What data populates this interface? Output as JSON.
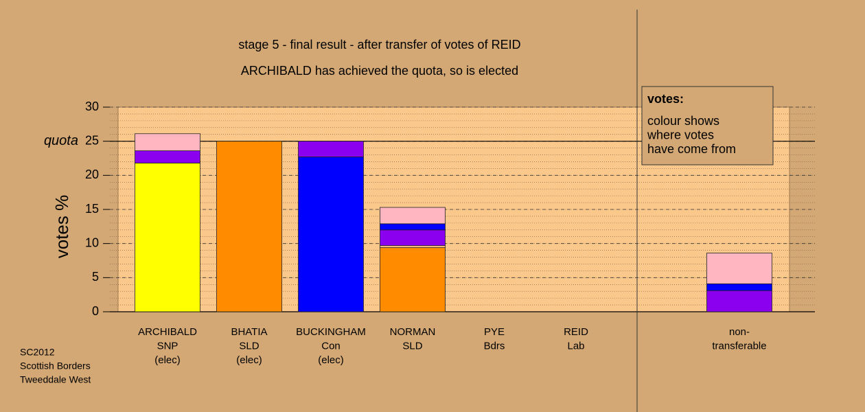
{
  "chart_data": {
    "type": "stacked-bar",
    "title": "stage 5 - final result - after transfer of votes of REID",
    "subtitle": "ARCHIBALD has achieved the quota, so is elected",
    "y_label": "votes %",
    "categories": [
      [
        "ARCHIBALD",
        "SNP",
        "(elec)"
      ],
      [
        "BHATIA",
        "SLD",
        "(elec)"
      ],
      [
        "BUCKINGHAM",
        "Con",
        "(elec)"
      ],
      [
        "NORMAN",
        "SLD"
      ],
      [
        "PYE",
        "Bdrs"
      ],
      [
        "REID",
        "Lab"
      ],
      [
        "non-",
        "transferable"
      ]
    ],
    "stacks": [
      [
        {
          "value": 21.8,
          "color": "#ffff00"
        },
        {
          "value": 1.8,
          "color": "#8b00ee"
        },
        {
          "value": 2.5,
          "color": "#ffb6c1"
        }
      ],
      [
        {
          "value": 25,
          "color": "#ff8c00"
        }
      ],
      [
        {
          "value": 22.7,
          "color": "#0000ff"
        },
        {
          "value": 2.3,
          "color": "#8b00ee"
        }
      ],
      [
        {
          "value": 9.4,
          "color": "#ff8c00"
        },
        {
          "value": 0.3,
          "color": "#ffc080"
        },
        {
          "value": 2.3,
          "color": "#8b00ee"
        },
        {
          "value": 0.9,
          "color": "#0000ff"
        },
        {
          "value": 2.4,
          "color": "#ffb6c1"
        }
      ],
      [
        {
          "value": 0,
          "color": "#ff8c00"
        }
      ],
      [
        {
          "value": 0,
          "color": "#ff8c00"
        }
      ],
      [
        {
          "value": 3.1,
          "color": "#8b00ee"
        },
        {
          "value": 1.0,
          "color": "#0000ff"
        },
        {
          "value": 4.5,
          "color": "#ffb6c1"
        }
      ]
    ],
    "ylim": [
      0,
      30
    ],
    "yticks": [
      0,
      5,
      10,
      15,
      20,
      25,
      30
    ],
    "minor_step": 1,
    "quota": {
      "value": 25,
      "label": "quota"
    },
    "legend": {
      "title": "votes:",
      "lines": [
        "colour shows",
        "where votes",
        "have come from"
      ]
    },
    "footer": [
      "SC2012",
      "Scottish Borders",
      "Tweeddale West"
    ]
  }
}
